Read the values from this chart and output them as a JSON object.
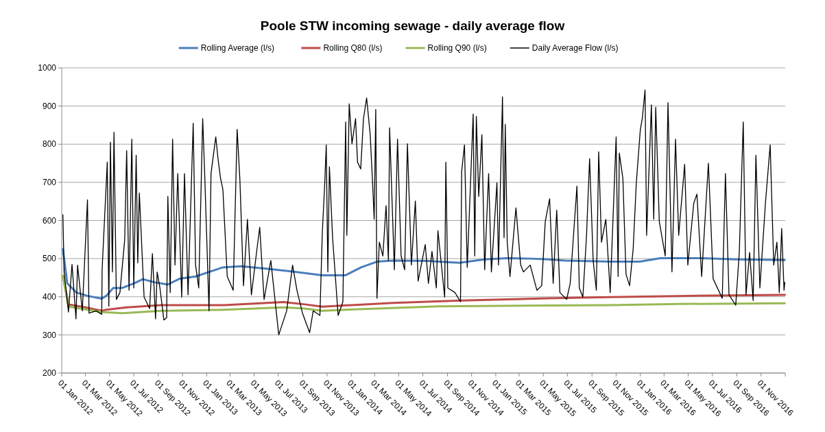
{
  "chart_data": {
    "type": "line",
    "title": "Poole STW incoming sewage - daily average flow",
    "legend": "top",
    "grid": "y",
    "line_style": "solid",
    "marker": "none",
    "xlim": [
      "2012-01-01",
      "2017-01-01"
    ],
    "xticks": [
      {
        "value": "2012-01-01",
        "label": "01 Jan 2012"
      },
      {
        "value": "2012-03-01",
        "label": "01 Mar 2012"
      },
      {
        "value": "2012-05-01",
        "label": "01 May 2012"
      },
      {
        "value": "2012-07-01",
        "label": "01 Jul 2012"
      },
      {
        "value": "2012-09-01",
        "label": "01 Sep 2012"
      },
      {
        "value": "2012-11-01",
        "label": "01 Nov 2012"
      },
      {
        "value": "2013-01-01",
        "label": "01 Jan 2013"
      },
      {
        "value": "2013-03-01",
        "label": "01 Mar 2013"
      },
      {
        "value": "2013-05-01",
        "label": "01 May 2013"
      },
      {
        "value": "2013-07-01",
        "label": "01 Jul 2013"
      },
      {
        "value": "2013-09-01",
        "label": "01 Sep 2013"
      },
      {
        "value": "2013-11-01",
        "label": "01 Nov 2013"
      },
      {
        "value": "2014-01-01",
        "label": "01 Jan 2014"
      },
      {
        "value": "2014-03-01",
        "label": "01 Mar 2014"
      },
      {
        "value": "2014-05-01",
        "label": "01 May 2014"
      },
      {
        "value": "2014-07-01",
        "label": "01 Jul 2014"
      },
      {
        "value": "2014-09-01",
        "label": "01 Sep 2014"
      },
      {
        "value": "2014-11-01",
        "label": "01 Nov 2014"
      },
      {
        "value": "2015-01-01",
        "label": "01 Jan 2015"
      },
      {
        "value": "2015-03-01",
        "label": "01 Mar 2015"
      },
      {
        "value": "2015-05-01",
        "label": "01 May 2015"
      },
      {
        "value": "2015-07-01",
        "label": "01 Jul 2015"
      },
      {
        "value": "2015-09-01",
        "label": "01 Sep 2015"
      },
      {
        "value": "2015-11-01",
        "label": "01 Nov 2015"
      },
      {
        "value": "2016-01-01",
        "label": "01 Jan 2016"
      },
      {
        "value": "2016-03-01",
        "label": "01 Mar 2016"
      },
      {
        "value": "2016-05-01",
        "label": "01 May 2016"
      },
      {
        "value": "2016-07-01",
        "label": "01 Jul 2016"
      },
      {
        "value": "2016-09-01",
        "label": "01 Sep 2016"
      },
      {
        "value": "2016-11-01",
        "label": "01 Nov 2016"
      },
      {
        "value": "2017-01-01",
        "label": null
      }
    ],
    "ylim": [
      200,
      1000
    ],
    "yticks": [
      200,
      300,
      400,
      500,
      600,
      700,
      800,
      900,
      1000
    ],
    "series": [
      {
        "name": "Rolling Average (l/s)",
        "color": "#4a7ebb",
        "x": [
          "2012-01-04",
          "2012-01-15",
          "2012-02-07",
          "2012-03-07",
          "2012-04-11",
          "2012-04-22",
          "2012-05-10",
          "2012-06-02",
          "2012-07-01",
          "2012-07-24",
          "2012-08-22",
          "2012-09-25",
          "2012-10-24",
          "2012-12-04",
          "2013-01-07",
          "2013-02-11",
          "2013-03-29",
          "2013-05-26",
          "2013-07-22",
          "2013-09-06",
          "2013-10-20",
          "2013-12-17",
          "2014-01-26",
          "2014-03-07",
          "2014-04-17",
          "2014-07-12",
          "2014-10-01",
          "2014-12-04",
          "2015-01-30",
          "2015-03-29",
          "2015-05-14",
          "2015-06-24",
          "2015-10-17",
          "2015-12-31",
          "2016-02-21",
          "2016-06-04",
          "2016-08-29",
          "2016-12-31"
        ],
        "values": [
          525,
          435,
          411,
          402,
          395,
          402,
          423,
          423,
          435,
          446,
          438,
          432,
          447,
          453,
          465,
          477,
          480,
          474,
          468,
          462,
          456,
          456,
          477,
          492,
          495,
          494,
          489,
          498,
          501,
          500,
          498,
          495,
          492,
          492,
          501,
          501,
          498,
          496
        ]
      },
      {
        "name": "Rolling Q80 (l/s)",
        "color": "#be4b48",
        "x": [
          "2012-01-04",
          "2012-01-18",
          "2012-03-01",
          "2012-04-11",
          "2012-04-22",
          "2012-06-13",
          "2012-09-08",
          "2013-02-14",
          "2013-07-14",
          "2013-09-06",
          "2013-10-20",
          "2014-04-17",
          "2014-10-07",
          "2015-05-14",
          "2015-10-17",
          "2016-04-07",
          "2016-12-31"
        ],
        "values": [
          455,
          380,
          372,
          363,
          366,
          372,
          378,
          378,
          386,
          380,
          374,
          384,
          390,
          396,
          399,
          402,
          405
        ]
      },
      {
        "name": "Rolling Q90 (l/s)",
        "color": "#98b954",
        "x": [
          "2012-01-04",
          "2012-01-18",
          "2012-04-11",
          "2012-06-02",
          "2012-09-08",
          "2013-02-14",
          "2013-07-14",
          "2013-09-06",
          "2013-10-20",
          "2013-12-17",
          "2014-08-10",
          "2015-05-14",
          "2015-10-17",
          "2016-04-07",
          "2016-12-31"
        ],
        "values": [
          455,
          374,
          360,
          357,
          363,
          366,
          372,
          369,
          363,
          366,
          375,
          377,
          378,
          381,
          383
        ]
      },
      {
        "name": "Daily Average Flow (l/s)",
        "color": "#000000",
        "x": [
          "2012-01-04",
          "2012-01-07",
          "2012-01-18",
          "2012-01-27",
          "2012-02-06",
          "2012-02-10",
          "2012-02-22",
          "2012-03-06",
          "2012-03-10",
          "2012-03-28",
          "2012-04-11",
          "2012-04-12",
          "2012-04-25",
          "2012-04-29",
          "2012-05-03",
          "2012-05-08",
          "2012-05-12",
          "2012-05-18",
          "2012-05-27",
          "2012-06-08",
          "2012-06-13",
          "2012-06-19",
          "2012-06-26",
          "2012-07-01",
          "2012-07-07",
          "2012-07-11",
          "2012-07-15",
          "2012-07-27",
          "2012-08-10",
          "2012-08-17",
          "2012-08-25",
          "2012-08-29",
          "2012-09-05",
          "2012-09-15",
          "2012-09-22",
          "2012-09-25",
          "2012-10-01",
          "2012-10-07",
          "2012-10-13",
          "2012-10-20",
          "2012-10-30",
          "2012-11-06",
          "2012-11-15",
          "2012-11-28",
          "2012-12-04",
          "2012-12-12",
          "2012-12-22",
          "2012-12-27",
          "2013-01-07",
          "2013-01-12",
          "2013-01-24",
          "2013-01-30",
          "2013-02-05",
          "2013-02-11",
          "2013-02-22",
          "2013-03-09",
          "2013-03-19",
          "2013-03-26",
          "2013-04-04",
          "2013-04-14",
          "2013-04-24",
          "2013-05-08",
          "2013-05-15",
          "2013-05-26",
          "2013-06-12",
          "2013-07-02",
          "2013-07-22",
          "2013-08-06",
          "2013-08-17",
          "2013-08-31",
          "2013-09-18",
          "2013-09-27",
          "2013-10-14",
          "2013-10-20",
          "2013-10-26",
          "2013-10-30",
          "2013-11-03",
          "2013-11-07",
          "2013-11-15",
          "2013-11-29",
          "2013-12-11",
          "2013-12-18",
          "2013-12-21",
          "2013-12-27",
          "2014-01-03",
          "2014-01-12",
          "2014-01-17",
          "2014-01-25",
          "2014-02-01",
          "2014-02-09",
          "2014-02-18",
          "2014-02-24",
          "2014-02-28",
          "2014-03-04",
          "2014-03-07",
          "2014-03-13",
          "2014-03-22",
          "2014-03-30",
          "2014-04-05",
          "2014-04-08",
          "2014-04-20",
          "2014-04-28",
          "2014-05-07",
          "2014-05-16",
          "2014-05-23",
          "2014-06-02",
          "2014-06-12",
          "2014-06-19",
          "2014-07-07",
          "2014-07-15",
          "2014-07-24",
          "2014-08-04",
          "2014-08-08",
          "2014-08-25",
          "2014-08-28",
          "2014-09-02",
          "2014-09-20",
          "2014-10-04",
          "2014-10-07",
          "2014-10-14",
          "2014-10-21",
          "2014-10-30",
          "2014-11-05",
          "2014-11-09",
          "2014-11-13",
          "2014-11-19",
          "2014-11-27",
          "2014-12-04",
          "2014-12-14",
          "2014-12-21",
          "2015-01-04",
          "2015-01-08",
          "2015-01-18",
          "2015-01-22",
          "2015-01-25",
          "2015-01-30",
          "2015-02-06",
          "2015-02-21",
          "2015-03-05",
          "2015-03-12",
          "2015-03-29",
          "2015-04-15",
          "2015-04-27",
          "2015-05-06",
          "2015-05-17",
          "2015-05-26",
          "2015-06-04",
          "2015-06-12",
          "2015-06-29",
          "2015-07-08",
          "2015-07-25",
          "2015-07-31",
          "2015-08-09",
          "2015-08-18",
          "2015-08-26",
          "2015-09-04",
          "2015-09-12",
          "2015-09-18",
          "2015-09-25",
          "2015-10-06",
          "2015-10-17",
          "2015-11-01",
          "2015-11-06",
          "2015-11-09",
          "2015-11-18",
          "2015-11-26",
          "2015-12-05",
          "2015-12-14",
          "2015-12-22",
          "2016-01-01",
          "2016-01-06",
          "2016-01-13",
          "2016-01-17",
          "2016-01-29",
          "2016-02-04",
          "2016-02-09",
          "2016-02-18",
          "2016-03-04",
          "2016-03-11",
          "2016-03-21",
          "2016-03-30",
          "2016-04-07",
          "2016-04-22",
          "2016-04-30",
          "2016-05-15",
          "2016-05-23",
          "2016-06-04",
          "2016-06-21",
          "2016-07-03",
          "2016-07-26",
          "2016-08-03",
          "2016-08-12",
          "2016-08-29",
          "2016-09-07",
          "2016-09-17",
          "2016-09-24",
          "2016-10-03",
          "2016-10-12",
          "2016-10-19",
          "2016-10-29",
          "2016-11-12",
          "2016-11-24",
          "2016-12-03",
          "2016-12-11",
          "2016-12-17",
          "2016-12-23",
          "2016-12-29",
          "2016-12-31"
        ],
        "values": [
          615,
          465,
          360,
          485,
          342,
          483,
          363,
          654,
          357,
          363,
          354,
          471,
          753,
          375,
          805,
          465,
          831,
          393,
          411,
          549,
          783,
          417,
          813,
          423,
          771,
          489,
          672,
          399,
          369,
          513,
          342,
          465,
          423,
          339,
          345,
          663,
          411,
          813,
          483,
          723,
          399,
          723,
          405,
          855,
          483,
          423,
          867,
          723,
          363,
          723,
          819,
          759,
          711,
          681,
          453,
          417,
          839,
          705,
          429,
          603,
          405,
          525,
          582,
          393,
          495,
          300,
          363,
          483,
          417,
          357,
          306,
          363,
          351,
          567,
          693,
          798,
          465,
          741,
          555,
          351,
          387,
          858,
          561,
          906,
          801,
          867,
          753,
          735,
          867,
          921,
          825,
          699,
          603,
          891,
          396,
          543,
          507,
          639,
          495,
          843,
          471,
          813,
          507,
          471,
          801,
          483,
          651,
          441,
          537,
          435,
          519,
          423,
          573,
          399,
          753,
          423,
          411,
          387,
          729,
          798,
          477,
          717,
          879,
          507,
          873,
          663,
          825,
          471,
          723,
          465,
          699,
          483,
          924,
          555,
          852,
          543,
          453,
          633,
          483,
          465,
          483,
          417,
          429,
          597,
          657,
          435,
          627,
          411,
          393,
          435,
          690,
          423,
          399,
          555,
          762,
          495,
          417,
          780,
          543,
          603,
          411,
          819,
          453,
          777,
          711,
          459,
          429,
          525,
          699,
          837,
          867,
          942,
          561,
          903,
          603,
          897,
          597,
          507,
          909,
          465,
          813,
          561,
          747,
          483,
          645,
          669,
          453,
          750,
          447,
          396,
          723,
          405,
          378,
          516,
          858,
          405,
          516,
          390,
          771,
          423,
          645,
          798,
          483,
          543,
          411,
          579,
          417,
          438
        ]
      }
    ]
  }
}
